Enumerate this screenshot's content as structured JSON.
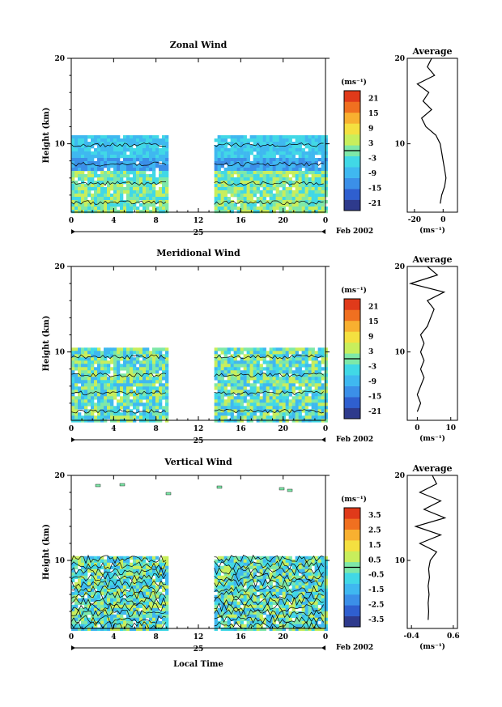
{
  "chart_data": [
    {
      "type": "heatmap",
      "title": "Zonal Wind",
      "ylabel": "Height (km)",
      "x_ticks": [
        "0",
        "4",
        "8",
        "12",
        "16",
        "20",
        "0"
      ],
      "y_ticks": [
        "20",
        "10"
      ],
      "date_label": "25",
      "month_label": "Feb 2002",
      "xlim": [
        0,
        24
      ],
      "ylim": [
        2,
        20
      ],
      "data_coverage_hours": [
        [
          0,
          9
        ],
        [
          13.5,
          24
        ]
      ],
      "data_top_km": 11,
      "colorbar": {
        "unit": "(ms⁻¹)",
        "ticks": [
          "21",
          "15",
          "9",
          "3",
          "-3",
          "-9",
          "-15",
          "-21"
        ],
        "range": [
          -24,
          24
        ],
        "colors": [
          "#2e3a8c",
          "#2f5fcf",
          "#3b8fe8",
          "#3fb8f0",
          "#41d8e6",
          "#7ee8a8",
          "#c8ee5c",
          "#f4e040",
          "#f8b030",
          "#f07020",
          "#e03a1a"
        ]
      },
      "average_profile": {
        "title": "Average",
        "x_ticks": [
          "-20",
          "0"
        ],
        "xlim": [
          -25,
          10
        ],
        "xlabel": "(ms⁻¹)",
        "y_ticks": [
          "20",
          "10"
        ],
        "points": [
          [
            -2,
            3
          ],
          [
            -1,
            4
          ],
          [
            1,
            5
          ],
          [
            2,
            6
          ],
          [
            1,
            7
          ],
          [
            0,
            8
          ],
          [
            -1,
            9
          ],
          [
            -2,
            10
          ],
          [
            -5,
            11
          ],
          [
            -12,
            12
          ],
          [
            -15,
            13
          ],
          [
            -8,
            14
          ],
          [
            -14,
            15
          ],
          [
            -10,
            16
          ],
          [
            -18,
            17
          ],
          [
            -6,
            18
          ],
          [
            -11,
            19
          ],
          [
            -8,
            20
          ]
        ]
      }
    },
    {
      "type": "heatmap",
      "title": "Meridional Wind",
      "ylabel": "Height (km)",
      "x_ticks": [
        "0",
        "4",
        "8",
        "12",
        "16",
        "20",
        "0"
      ],
      "y_ticks": [
        "20",
        "10"
      ],
      "date_label": "25",
      "month_label": "Feb 2002",
      "xlim": [
        0,
        24
      ],
      "ylim": [
        2,
        20
      ],
      "data_coverage_hours": [
        [
          0,
          9
        ],
        [
          13.5,
          24
        ]
      ],
      "data_top_km": 10.5,
      "colorbar": {
        "unit": "(ms⁻¹)",
        "ticks": [
          "21",
          "15",
          "9",
          "3",
          "-3",
          "-9",
          "-15",
          "-21"
        ],
        "range": [
          -24,
          24
        ],
        "colors": [
          "#2e3a8c",
          "#2f5fcf",
          "#3b8fe8",
          "#3fb8f0",
          "#41d8e6",
          "#7ee8a8",
          "#c8ee5c",
          "#f4e040",
          "#f8b030",
          "#f07020",
          "#e03a1a"
        ]
      },
      "average_profile": {
        "title": "Average",
        "x_ticks": [
          "0",
          "10"
        ],
        "xlim": [
          -3,
          12
        ],
        "xlabel": "(ms⁻¹)",
        "y_ticks": [
          "20",
          "10"
        ],
        "points": [
          [
            0,
            3
          ],
          [
            1,
            4
          ],
          [
            0,
            5
          ],
          [
            1,
            6
          ],
          [
            2,
            7
          ],
          [
            1,
            8
          ],
          [
            2,
            9
          ],
          [
            1,
            10
          ],
          [
            2,
            11
          ],
          [
            1,
            12
          ],
          [
            3,
            13
          ],
          [
            4,
            14
          ],
          [
            5,
            15
          ],
          [
            3,
            16
          ],
          [
            8,
            17
          ],
          [
            -2,
            18
          ],
          [
            6,
            19
          ],
          [
            3,
            20
          ]
        ]
      }
    },
    {
      "type": "heatmap",
      "title": "Vertical Wind",
      "ylabel": "Height (km)",
      "xlabel": "Local Time",
      "x_ticks": [
        "0",
        "4",
        "8",
        "12",
        "16",
        "20",
        "0"
      ],
      "y_ticks": [
        "20",
        "10"
      ],
      "date_label": "25",
      "month_label": "Feb 2002",
      "xlim": [
        0,
        24
      ],
      "ylim": [
        2,
        20
      ],
      "data_coverage_hours": [
        [
          0,
          9
        ],
        [
          13.5,
          24
        ]
      ],
      "data_top_km": 10.5,
      "colorbar": {
        "unit": "(ms⁻¹)",
        "ticks": [
          "3.5",
          "2.5",
          "1.5",
          "0.5",
          "-0.5",
          "-1.5",
          "-2.5",
          "-3.5"
        ],
        "range": [
          -4,
          4
        ],
        "colors": [
          "#2e3a8c",
          "#2f5fcf",
          "#3b8fe8",
          "#3fb8f0",
          "#41d8e6",
          "#7ee8a8",
          "#c8ee5c",
          "#f4e040",
          "#f8b030",
          "#f07020",
          "#e03a1a"
        ]
      },
      "average_profile": {
        "title": "Average",
        "x_ticks": [
          "-0.4",
          "0.6"
        ],
        "xlim": [
          -0.5,
          0.7
        ],
        "xlabel": "(ms⁻¹)",
        "y_ticks": [
          "20",
          "10"
        ],
        "points": [
          [
            0.0,
            3
          ],
          [
            0.01,
            4
          ],
          [
            0.0,
            5
          ],
          [
            0.02,
            6
          ],
          [
            0.0,
            7
          ],
          [
            0.03,
            8
          ],
          [
            0.01,
            9
          ],
          [
            0.05,
            10
          ],
          [
            0.2,
            11
          ],
          [
            -0.2,
            12
          ],
          [
            0.3,
            13
          ],
          [
            -0.3,
            14
          ],
          [
            0.4,
            15
          ],
          [
            -0.1,
            16
          ],
          [
            0.3,
            17
          ],
          [
            -0.2,
            18
          ],
          [
            0.2,
            19
          ],
          [
            0.1,
            20
          ]
        ]
      }
    }
  ]
}
